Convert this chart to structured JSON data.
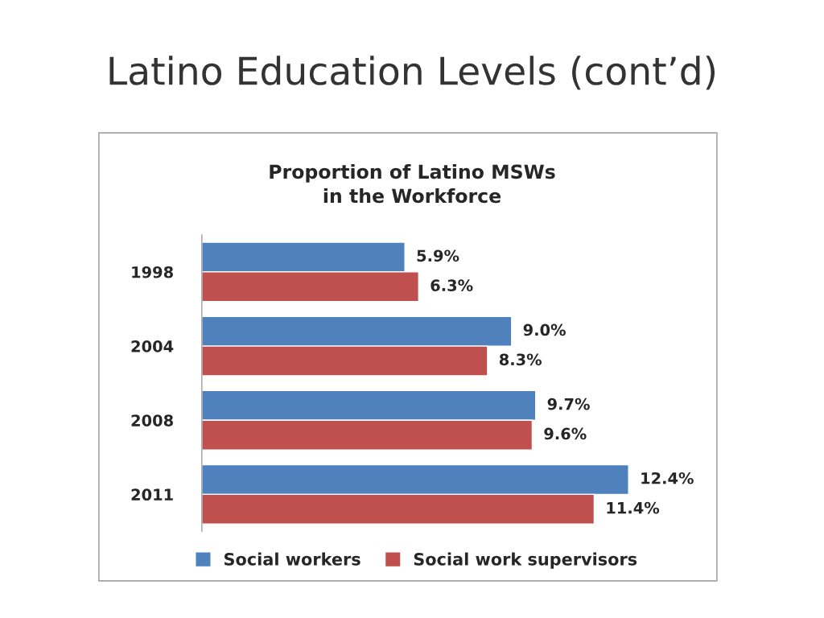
{
  "chart_data": {
    "type": "bar",
    "orientation": "horizontal",
    "title": "Latino Education Levels (cont’d)",
    "subtitle": "Proportion of Latino MSWs\nin the Workforce",
    "categories": [
      "1998",
      "2004",
      "2008",
      "2011"
    ],
    "series": [
      {
        "name": "Social workers",
        "color": "#4f81bd",
        "values": [
          5.9,
          9.0,
          9.7,
          12.4
        ],
        "value_labels": [
          "5.9%",
          "9.0%",
          "9.7%",
          "12.4%"
        ]
      },
      {
        "name": "Social work supervisors",
        "color": "#c0504d",
        "values": [
          6.3,
          8.3,
          9.6,
          11.4
        ],
        "value_labels": [
          "6.3%",
          "8.3%",
          "9.6%",
          "11.4%"
        ]
      }
    ],
    "legend": "bottom",
    "tick_labels": "y",
    "grid": false
  }
}
